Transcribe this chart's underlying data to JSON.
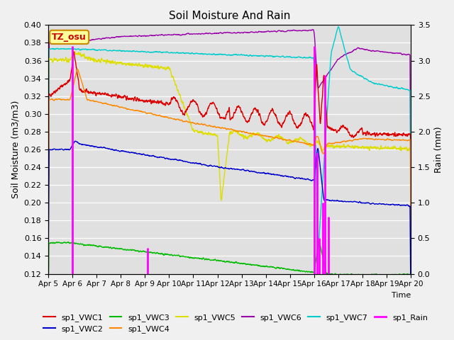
{
  "title": "Soil Moisture And Rain",
  "xlabel": "Time",
  "ylabel_left": "Soil Moisture (m3/m3)",
  "ylabel_right": "Rain (mm)",
  "xlim": [
    0,
    15
  ],
  "ylim_left": [
    0.12,
    0.4
  ],
  "ylim_right": [
    0.0,
    3.5
  ],
  "xtick_labels": [
    "Apr 5",
    "Apr 6",
    "Apr 7",
    "Apr 8",
    "Apr 9",
    "Apr 10",
    "Apr 11",
    "Apr 12",
    "Apr 13",
    "Apr 14",
    "Apr 15",
    "Apr 16",
    "Apr 17",
    "Apr 18",
    "Apr 19",
    "Apr 20"
  ],
  "legend_label": "TZ_osu",
  "colors": {
    "VWC1": "#dd0000",
    "VWC2": "#0000cc",
    "VWC3": "#00bb00",
    "VWC4": "#ff8800",
    "VWC5": "#dddd00",
    "VWC6": "#9900aa",
    "VWC7": "#00cccc",
    "Rain": "#ff00ff"
  },
  "bg_color": "#e0e0e0",
  "fig_color": "#f0f0f0"
}
